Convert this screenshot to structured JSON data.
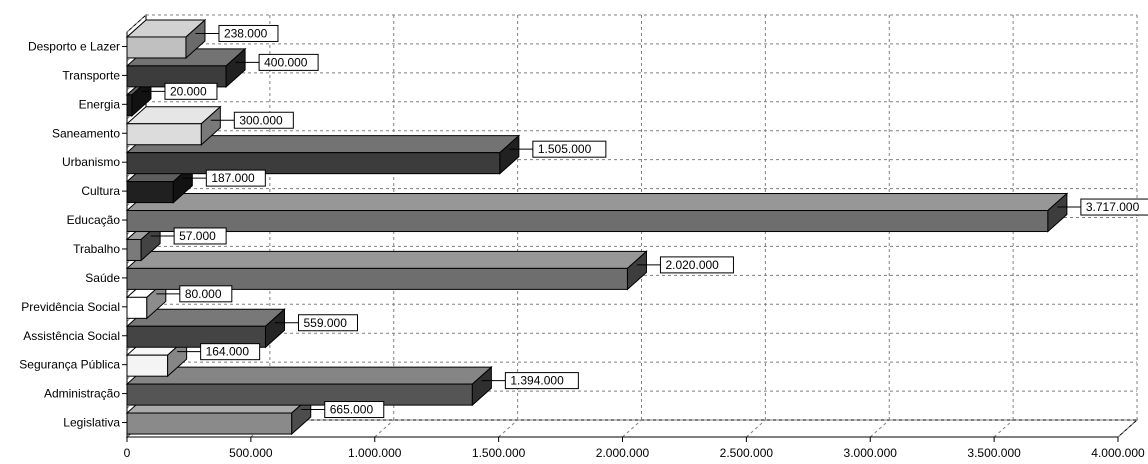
{
  "chart_data": {
    "type": "bar",
    "orientation": "horizontal",
    "style": "3d",
    "categories": [
      "Desporto e Lazer",
      "Transporte",
      "Energia",
      "Saneamento",
      "Urbanismo",
      "Cultura",
      "Educação",
      "Trabalho",
      "Saúde",
      "Previdência Social",
      "Assistência Social",
      "Segurança Pública",
      "Administração",
      "Legislativa"
    ],
    "values": [
      238000,
      400000,
      20000,
      300000,
      1505000,
      187000,
      3717000,
      57000,
      2020000,
      80000,
      559000,
      164000,
      1394000,
      665000
    ],
    "value_labels": [
      "238.000",
      "400.000",
      "20.000",
      "300.000",
      "1.505.000",
      "187.000",
      "3.717.000",
      "57.000",
      "2.020.000",
      "80.000",
      "559.000",
      "164.000",
      "1.394.000",
      "665.000"
    ],
    "bar_colors": [
      "#c0c0c0",
      "#3c3c3c",
      "#202020",
      "#dcdcdc",
      "#3c3c3c",
      "#202020",
      "#6e6e6e",
      "#7a7a7a",
      "#6e6e6e",
      "#ffffff",
      "#444444",
      "#f4f4f4",
      "#555555",
      "#8a8a8a"
    ],
    "xlim": [
      0,
      4000000
    ],
    "x_ticks": [
      0,
      500000,
      1000000,
      1500000,
      2000000,
      2500000,
      3000000,
      3500000,
      4000000
    ],
    "x_tick_labels": [
      "0",
      "500.000",
      "1.000.000",
      "1.500.000",
      "2.000.000",
      "2.500.000",
      "3.000.000",
      "3.500.000",
      "4.000.000"
    ],
    "grid": true,
    "title": "",
    "xlabel": "",
    "ylabel": ""
  }
}
